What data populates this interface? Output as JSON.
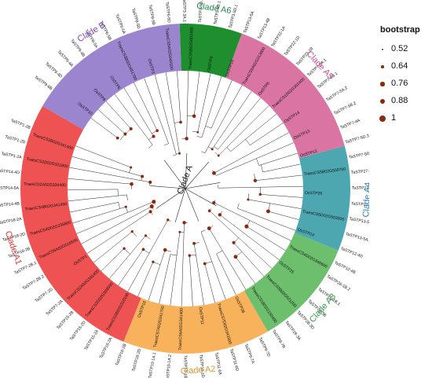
{
  "legend": {
    "title": "bootstrap",
    "items": [
      "0.52",
      "0.64",
      "0.76",
      "0.88",
      "1"
    ]
  },
  "clades": [
    {
      "name": "Clade A1",
      "color": "#EE5252",
      "text_color": "#E0352F",
      "from": 150,
      "to": 248
    },
    {
      "name": "Clade A2",
      "color": "#F7B25B",
      "text_color": "#D9962A",
      "from": 248,
      "to": 300
    },
    {
      "name": "Clade A3",
      "color": "#6DBF6D",
      "text_color": "#2E9E4A",
      "from": 300,
      "to": 338
    },
    {
      "name": "Clade A4",
      "color": "#4DA7B0",
      "text_color": "#2A7FBF",
      "from": 338,
      "to": 375
    },
    {
      "name": "Clade A5",
      "color": "#D974A3",
      "text_color": "#D14F8F",
      "from": 375,
      "to": 430
    },
    {
      "name": "Clade A6",
      "color": "#1E8E2E",
      "text_color": "#1E8E4E",
      "from": 430,
      "to": 452
    },
    {
      "name": "Clade B",
      "color": "#9B85CF",
      "text_color": "#7A3FBF",
      "from": 452,
      "to": 510
    }
  ],
  "center_label": "Clade A",
  "tips": [
    "TaSTP1-2B",
    "TaSTP1-2D",
    "TaSTP1-2A",
    "TaSTP14-4D",
    "TaSTP14-5A",
    "TaSTP14-4B",
    "TaSTP18-2A",
    "TaSTP18-2D",
    "TaSTP18-2B",
    "TaSTP7-2B.1",
    "TaSTP7-2B.2",
    "TaSTP7-2D",
    "TaSTP7-2A",
    "TaSTP15-2B",
    "TaSTP15-2D",
    "TaSTP15-2A",
    "TaSTP16-2A",
    "TaSTP16-2B",
    "TaSTP16-2D",
    "TaSTP10-1A.1",
    "TaSTP10-1A.2",
    "TaSTP10-1B",
    "TaSTP10-1D",
    "TaSTP11-6A",
    "TaSTP11-6D",
    "TaSTP9-7A",
    "TaSTP9-7D",
    "TaSTP9-7B",
    "TaSTP28-3A",
    "TaSTP28-3D",
    "TaSTP28-3B",
    "TaSTP26-1B.1",
    "TaSTP26-1B.2",
    "TaSTP12-4B",
    "TaSTP12-4D",
    "TaSTP13-5A.1",
    "TaSTP13-5A.2",
    "TaSTP27-1D",
    "TaSTP27-1B",
    "TaSTP27-1A",
    "TaSTP7-5D.1",
    "TaSTP7-5D.3",
    "TaSTP7-4A",
    "TaSTP7-5B.2",
    "TaSTP7-5A.2",
    "TaSTP7-5B.1",
    "TaSTP7-5A.1",
    "TaSTP22-1B",
    "TaSTP22-1D",
    "TaSTP22-1A",
    "TaSTP13-4B",
    "TaSTP13-5A",
    "TaSTP3-5D.1",
    "TaSTP3-5B.1",
    "TaSTP3-5D.2",
    "TaSTP3-3A.1",
    "TaSTP6-5D",
    "TaSTP8-5B",
    "TaSTP8-5D",
    "TaSTP6-5A",
    "TaSTP6-5B",
    "TaSTP8-5A",
    "TaSTP9-4B",
    "TaSTP9-4A",
    "TaSTP9-4D",
    "TaSTP9-6B"
  ],
  "inner_labels": [
    "TraesCS2B02G341400",
    "TraesCS2D02G321800",
    "TraesCS2A02G334400",
    "TraesCS4B02G341400",
    "TraesCS4D02G335600",
    "TraesCS5A02G516500",
    "OsSTP1",
    "TraesCS2A02G341400",
    "TraesCS2D02G304500",
    "TraesCS2B02G310100",
    "OsSTP16",
    "TraesCS7A02G341700",
    "TraesCS6A02G341400",
    "OsSTP11",
    "TraesCS7D02G341500",
    "OsSTP28",
    "TraesCS1B02G150400",
    "TraesCS3B02G521200",
    "OsSTP25",
    "TraesCS4D02G340600",
    "OsSTP24",
    "TraesCS5D02G503300",
    "OsSTP26",
    "TraesCS5B02G500700",
    "OsSTP12",
    "OsSTP13",
    "OsSTP14",
    "TraesCS1D02G302400",
    "OsSTP8",
    "TraesCS5A02G313000",
    "OsSTP15",
    "OsSTP4",
    "TraesCS5B02G002400",
    "TraesCS5A02G040100",
    "OsSTP3",
    "TraesCS3B02G451700",
    "OsSTP6",
    "OsSTP9",
    "OsSTP10"
  ]
}
